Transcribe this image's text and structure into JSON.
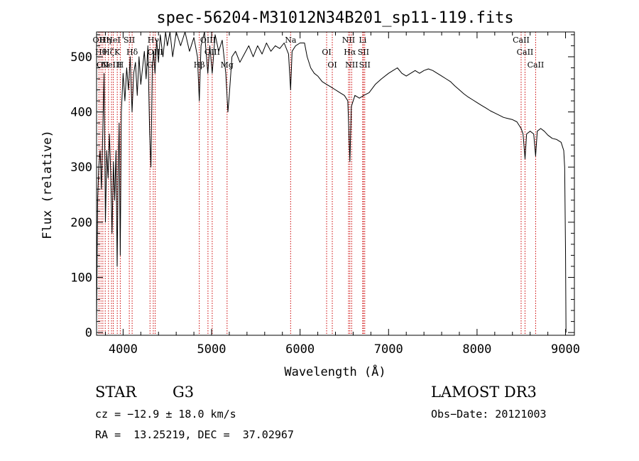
{
  "chart_data": {
    "type": "line",
    "title": "spec-56204-M31012N34B201_sp11-119.fits",
    "xlabel": "Wavelength (Å)",
    "ylabel": "Flux (relative)",
    "xlim": [
      3700,
      9100
    ],
    "ylim": [
      -5,
      545
    ],
    "xticks": [
      4000,
      5000,
      6000,
      7000,
      8000,
      9000
    ],
    "yticks": [
      0,
      100,
      200,
      300,
      400,
      500
    ],
    "spectrum": [
      [
        3700,
        20
      ],
      [
        3712,
        240
      ],
      [
        3725,
        300
      ],
      [
        3740,
        330
      ],
      [
        3755,
        260
      ],
      [
        3770,
        360
      ],
      [
        3785,
        470
      ],
      [
        3800,
        200
      ],
      [
        3815,
        330
      ],
      [
        3830,
        280
      ],
      [
        3845,
        360
      ],
      [
        3860,
        290
      ],
      [
        3875,
        180
      ],
      [
        3890,
        310
      ],
      [
        3905,
        240
      ],
      [
        3920,
        330
      ],
      [
        3933,
        120
      ],
      [
        3945,
        300
      ],
      [
        3955,
        380
      ],
      [
        3968,
        140
      ],
      [
        3980,
        400
      ],
      [
        4000,
        470
      ],
      [
        4020,
        420
      ],
      [
        4040,
        480
      ],
      [
        4060,
        440
      ],
      [
        4080,
        500
      ],
      [
        4101,
        400
      ],
      [
        4120,
        470
      ],
      [
        4140,
        490
      ],
      [
        4160,
        430
      ],
      [
        4180,
        500
      ],
      [
        4200,
        450
      ],
      [
        4220,
        480
      ],
      [
        4240,
        510
      ],
      [
        4260,
        460
      ],
      [
        4280,
        520
      ],
      [
        4300,
        360
      ],
      [
        4315,
        300
      ],
      [
        4330,
        480
      ],
      [
        4345,
        510
      ],
      [
        4360,
        470
      ],
      [
        4380,
        530
      ],
      [
        4400,
        490
      ],
      [
        4420,
        540
      ],
      [
        4450,
        500
      ],
      [
        4480,
        545
      ],
      [
        4500,
        520
      ],
      [
        4530,
        545
      ],
      [
        4560,
        500
      ],
      [
        4600,
        545
      ],
      [
        4650,
        520
      ],
      [
        4700,
        545
      ],
      [
        4750,
        510
      ],
      [
        4800,
        535
      ],
      [
        4840,
        500
      ],
      [
        4861,
        420
      ],
      [
        4880,
        520
      ],
      [
        4920,
        545
      ],
      [
        4957,
        470
      ],
      [
        4980,
        520
      ],
      [
        5007,
        470
      ],
      [
        5040,
        540
      ],
      [
        5080,
        510
      ],
      [
        5120,
        530
      ],
      [
        5160,
        470
      ],
      [
        5184,
        400
      ],
      [
        5200,
        430
      ],
      [
        5230,
        500
      ],
      [
        5270,
        510
      ],
      [
        5320,
        490
      ],
      [
        5370,
        505
      ],
      [
        5420,
        520
      ],
      [
        5470,
        500
      ],
      [
        5520,
        520
      ],
      [
        5570,
        505
      ],
      [
        5620,
        525
      ],
      [
        5670,
        510
      ],
      [
        5720,
        520
      ],
      [
        5770,
        515
      ],
      [
        5820,
        525
      ],
      [
        5870,
        505
      ],
      [
        5893,
        440
      ],
      [
        5910,
        510
      ],
      [
        5950,
        520
      ],
      [
        6000,
        525
      ],
      [
        6050,
        525
      ],
      [
        6080,
        500
      ],
      [
        6120,
        480
      ],
      [
        6160,
        470
      ],
      [
        6200,
        465
      ],
      [
        6250,
        455
      ],
      [
        6300,
        450
      ],
      [
        6350,
        445
      ],
      [
        6400,
        440
      ],
      [
        6450,
        435
      ],
      [
        6500,
        430
      ],
      [
        6540,
        420
      ],
      [
        6563,
        310
      ],
      [
        6580,
        410
      ],
      [
        6620,
        430
      ],
      [
        6670,
        425
      ],
      [
        6720,
        430
      ],
      [
        6780,
        435
      ],
      [
        6850,
        450
      ],
      [
        6920,
        460
      ],
      [
        7000,
        470
      ],
      [
        7050,
        475
      ],
      [
        7100,
        480
      ],
      [
        7150,
        470
      ],
      [
        7200,
        465
      ],
      [
        7250,
        470
      ],
      [
        7300,
        475
      ],
      [
        7350,
        470
      ],
      [
        7400,
        475
      ],
      [
        7450,
        478
      ],
      [
        7500,
        475
      ],
      [
        7550,
        470
      ],
      [
        7600,
        465
      ],
      [
        7650,
        460
      ],
      [
        7700,
        455
      ],
      [
        7750,
        447
      ],
      [
        7800,
        440
      ],
      [
        7850,
        433
      ],
      [
        7900,
        427
      ],
      [
        7950,
        422
      ],
      [
        8000,
        417
      ],
      [
        8050,
        412
      ],
      [
        8100,
        407
      ],
      [
        8150,
        402
      ],
      [
        8200,
        398
      ],
      [
        8250,
        394
      ],
      [
        8300,
        390
      ],
      [
        8350,
        388
      ],
      [
        8400,
        386
      ],
      [
        8450,
        382
      ],
      [
        8498,
        370
      ],
      [
        8520,
        360
      ],
      [
        8542,
        315
      ],
      [
        8560,
        360
      ],
      [
        8600,
        365
      ],
      [
        8640,
        360
      ],
      [
        8662,
        320
      ],
      [
        8680,
        365
      ],
      [
        8720,
        370
      ],
      [
        8760,
        365
      ],
      [
        8800,
        358
      ],
      [
        8850,
        352
      ],
      [
        8900,
        350
      ],
      [
        8950,
        345
      ],
      [
        8980,
        330
      ],
      [
        8990,
        300
      ],
      [
        9000,
        150
      ],
      [
        9005,
        0
      ]
    ],
    "line_markers": [
      {
        "wavelength": 3727,
        "label": "OII"
      },
      {
        "wavelength": 3750,
        "label": "Hθ"
      },
      {
        "wavelength": 3771,
        "label": "OII"
      },
      {
        "wavelength": 3798,
        "label": "Hη"
      },
      {
        "wavelength": 3835,
        "label": "Hζ"
      },
      {
        "wavelength": 3869,
        "label": "NeIII"
      },
      {
        "wavelength": 3889,
        "label": "HeI"
      },
      {
        "wavelength": 3934,
        "label": "K"
      },
      {
        "wavelength": 3968,
        "label": "H"
      },
      {
        "wavelength": 4070,
        "label": "SII"
      },
      {
        "wavelength": 4102,
        "label": "Hδ"
      },
      {
        "wavelength": 4304,
        "label": "G"
      },
      {
        "wavelength": 4341,
        "label": "Hγ"
      },
      {
        "wavelength": 4363,
        "label": "OIII"
      },
      {
        "wavelength": 4861,
        "label": "Hβ"
      },
      {
        "wavelength": 4959,
        "label": "OIII"
      },
      {
        "wavelength": 5007,
        "label": "OIII"
      },
      {
        "wavelength": 5175,
        "label": "Mg"
      },
      {
        "wavelength": 5893,
        "label": "Na"
      },
      {
        "wavelength": 6300,
        "label": "OI"
      },
      {
        "wavelength": 6364,
        "label": "OI"
      },
      {
        "wavelength": 6548,
        "label": "NII"
      },
      {
        "wavelength": 6563,
        "label": "Hα"
      },
      {
        "wavelength": 6583,
        "label": "NII"
      },
      {
        "wavelength": 6708,
        "label": "Li"
      },
      {
        "wavelength": 6716,
        "label": "SII"
      },
      {
        "wavelength": 6731,
        "label": "SII"
      },
      {
        "wavelength": 8498,
        "label": "CaII"
      },
      {
        "wavelength": 8542,
        "label": "CaII"
      },
      {
        "wavelength": 8662,
        "label": "CaII"
      }
    ]
  },
  "footer": {
    "class": "STAR",
    "subclass": "G3",
    "survey": "LAMOST DR3",
    "cz": "cz = −12.9 ± 18.0 km/s",
    "obs_date": "Obs−Date: 20121003",
    "coords": "RA =  13.25219, DEC =  37.02967"
  },
  "colors": {
    "spectrum": "#000000",
    "marker": "#cc0000",
    "axis": "#000000"
  }
}
